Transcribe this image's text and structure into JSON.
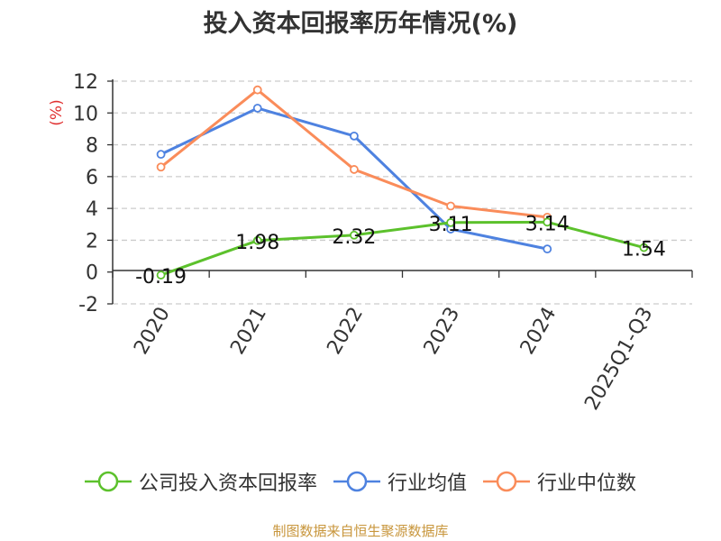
{
  "chart_data": {
    "type": "line",
    "title": "投入资本回报率历年情况(%)",
    "ylabel": "(%)",
    "categories": [
      "2020",
      "2021",
      "2022",
      "2023",
      "2024",
      "2025Q1-Q3"
    ],
    "ylim": [
      -2,
      12
    ],
    "yticks": [
      -2,
      0,
      2,
      4,
      6,
      8,
      10,
      12
    ],
    "grid": true,
    "legend_position": "bottom",
    "series": [
      {
        "name": "公司投入资本回报率",
        "color": "#5cc12c",
        "values": [
          -0.19,
          1.98,
          2.32,
          3.11,
          3.14,
          1.54
        ],
        "labels": [
          "-0.19",
          "1.98",
          "2.32",
          "3.11",
          "3.14",
          "1.54"
        ]
      },
      {
        "name": "行业均值",
        "color": "#4e82e0",
        "values": [
          7.4,
          10.3,
          8.55,
          2.7,
          1.45,
          null
        ]
      },
      {
        "name": "行业中位数",
        "color": "#fa8c5a",
        "values": [
          6.6,
          11.45,
          6.45,
          4.15,
          3.45,
          null
        ]
      }
    ]
  },
  "source_note": "制图数据来自恒生聚源数据库",
  "ylabel_color": "#e03030"
}
